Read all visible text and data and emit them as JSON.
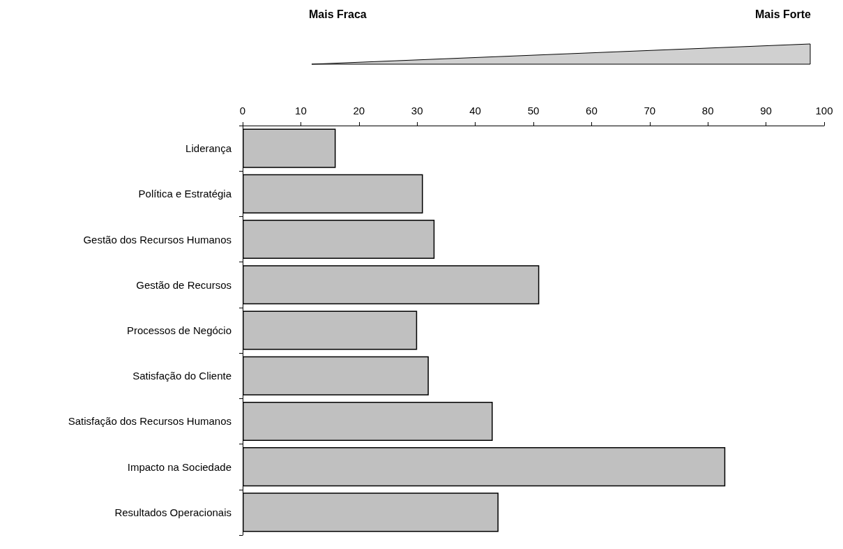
{
  "chart_data": {
    "type": "bar",
    "orientation": "horizontal",
    "categories": [
      "Liderança",
      "Política e Estratégia",
      "Gestão dos Recursos Humanos",
      "Gestão de Recursos",
      "Processos de Negócio",
      "Satisfação do Cliente",
      "Satisfação dos Recursos Humanos",
      "Impacto na Sociedade",
      "Resultados Operacionais"
    ],
    "values": [
      16,
      31,
      33,
      51,
      30,
      32,
      43,
      83,
      44
    ],
    "color": "#c0c0c0",
    "xlim": [
      0,
      100
    ],
    "xticks": [
      0,
      10,
      20,
      30,
      40,
      50,
      60,
      70,
      80,
      90,
      100
    ],
    "grid": false,
    "annotations": [
      "Mais Fraca",
      "Mais Forte"
    ]
  }
}
